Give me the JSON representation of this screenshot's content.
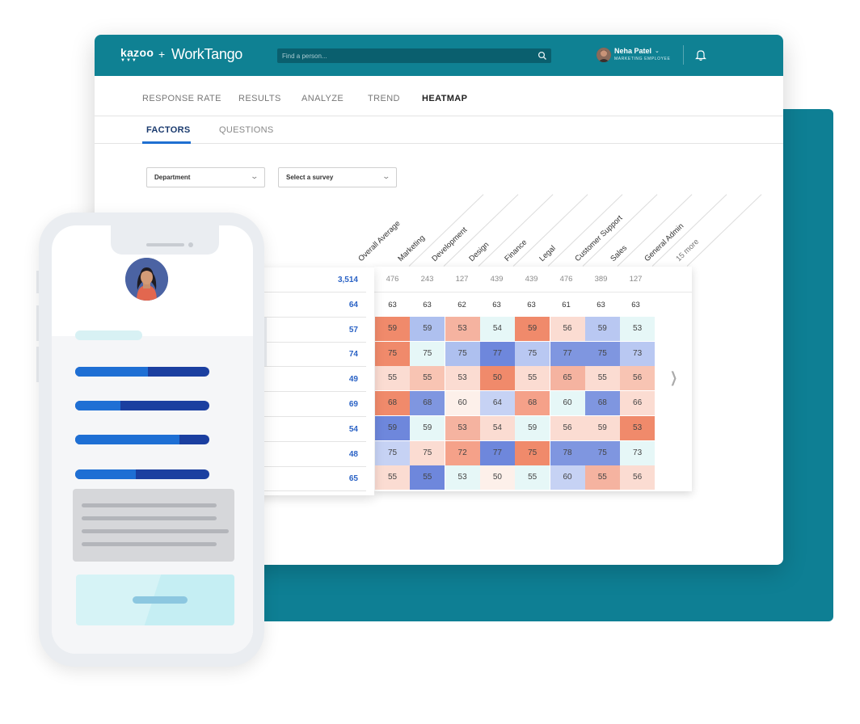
{
  "brand": {
    "logo_primary": "kazoo",
    "logo_primary_mark": "▼▼▼",
    "logo_joiner": "+",
    "logo_secondary": "WorkTango"
  },
  "search": {
    "placeholder": "Find a person..."
  },
  "user": {
    "name": "Neha Patel",
    "role": "MARKETING EMPLOYEE"
  },
  "main_nav": [
    {
      "label": "RESPONSE RATE",
      "active": false
    },
    {
      "label": "RESULTS",
      "active": false
    },
    {
      "label": "ANALYZE",
      "active": false
    },
    {
      "label": "TREND",
      "active": false
    },
    {
      "label": "HEATMAP",
      "active": true
    }
  ],
  "sub_nav": [
    {
      "label": "FACTORS",
      "active": true
    },
    {
      "label": "QUESTIONS",
      "active": false
    }
  ],
  "filters": {
    "group": "Department",
    "survey": "Select a survey"
  },
  "heatmap": {
    "columns": [
      "Overall Average",
      "Marketing",
      "Development",
      "Design",
      "Finance",
      "Legal",
      "Customer Support",
      "Sales",
      "General Admin"
    ],
    "more_label": "15 more",
    "counts": [
      "476",
      "243",
      "127",
      "439",
      "439",
      "476",
      "389",
      "127"
    ],
    "overall_total": "3,514",
    "row_overall": [
      "64",
      "57",
      "74",
      "49",
      "69",
      "54",
      "48",
      "65"
    ],
    "dept_averages": [
      "63",
      "63",
      "62",
      "63",
      "63",
      "61",
      "63",
      "63"
    ],
    "rows": [
      [
        "59",
        "59",
        "53",
        "54",
        "59",
        "56",
        "59",
        "53"
      ],
      [
        "75",
        "75",
        "75",
        "77",
        "75",
        "77",
        "75",
        "73"
      ],
      [
        "55",
        "55",
        "53",
        "50",
        "55",
        "65",
        "55",
        "56"
      ],
      [
        "68",
        "68",
        "60",
        "64",
        "68",
        "60",
        "68",
        "66"
      ],
      [
        "59",
        "59",
        "53",
        "54",
        "59",
        "56",
        "59",
        "53"
      ],
      [
        "75",
        "75",
        "72",
        "77",
        "75",
        "78",
        "75",
        "73"
      ],
      [
        "55",
        "55",
        "53",
        "50",
        "55",
        "60",
        "55",
        "56"
      ]
    ],
    "row_colors": [
      [
        "#f08a6b",
        "#aec0ef",
        "#f5b3a0",
        "#e6f7f7",
        "#f08a6b",
        "#fbdcd2",
        "#b9c8f2",
        "#e6f7f7"
      ],
      [
        "#f08a6b",
        "#e6f7f7",
        "#aec0ef",
        "#6e87dc",
        "#b9c8f2",
        "#7f96e0",
        "#7f96e0",
        "#b9c8f2"
      ],
      [
        "#fbdcd2",
        "#f8c4b3",
        "#fbdcd2",
        "#f08a6b",
        "#fbdcd2",
        "#f5b3a0",
        "#fbdcd2",
        "#f8c4b3"
      ],
      [
        "#f08a6b",
        "#7f96e0",
        "#fdf0ea",
        "#c6d2f4",
        "#f5a189",
        "#e6f7f7",
        "#7f96e0",
        "#fbdcd2"
      ],
      [
        "#6e87dc",
        "#e6f7f7",
        "#f5b3a0",
        "#fbdcd2",
        "#e6f7f7",
        "#fbdcd2",
        "#fbdcd2",
        "#f08a6b"
      ],
      [
        "#c6d2f4",
        "#fbdcd2",
        "#f5a189",
        "#6e87dc",
        "#f08a6b",
        "#7f96e0",
        "#7f96e0",
        "#e6f7f7"
      ],
      [
        "#fbdcd2",
        "#6e87dc",
        "#e6f7f7",
        "#fdf0ea",
        "#e6f7f7",
        "#c6d2f4",
        "#f5b3a0",
        "#fbdcd2"
      ]
    ]
  },
  "phone": {
    "progress": [
      0.54,
      0.34,
      0.78,
      0.45
    ]
  },
  "colors": {
    "brand_teal": "#0f8193",
    "accent_blue": "#1f6fd1",
    "link_blue": "#2a62c5"
  }
}
